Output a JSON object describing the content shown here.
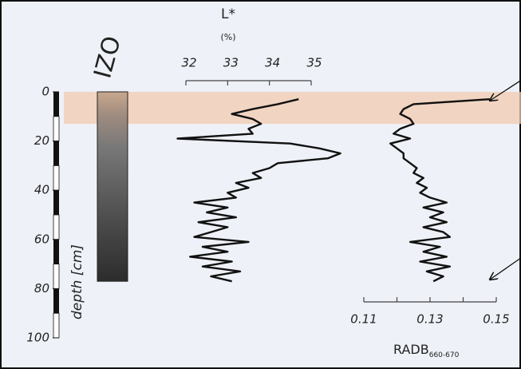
{
  "chart_data": {
    "type": "line",
    "core_label": "IZO",
    "y_label": "depth [cm]",
    "ylim": [
      0,
      100
    ],
    "yticks": [
      0,
      20,
      40,
      60,
      80,
      100
    ],
    "highlight": [
      0,
      13
    ],
    "depth": [
      3,
      5,
      7,
      9,
      11,
      13,
      15,
      17,
      19,
      21,
      23,
      25,
      27,
      29,
      31,
      33,
      35,
      37,
      39,
      41,
      43,
      45,
      47,
      49,
      51,
      53,
      55,
      57,
      59,
      61,
      63,
      65,
      67,
      69,
      71,
      73,
      75,
      77
    ],
    "panels": [
      {
        "x_label": "L*",
        "x_unit": "(%)",
        "xlim": [
          32,
          35
        ],
        "xticks": [
          32,
          33,
          34,
          35
        ],
        "color": "#111111",
        "values": [
          34.7,
          34.2,
          33.6,
          33.1,
          33.6,
          33.8,
          33.5,
          33.6,
          31.8,
          34.5,
          35.2,
          35.7,
          35.4,
          34.2,
          34.0,
          33.6,
          33.8,
          33.2,
          33.5,
          33.0,
          33.2,
          32.2,
          33.0,
          32.5,
          33.2,
          32.3,
          33.0,
          32.6,
          32.2,
          33.5,
          32.4,
          33.0,
          32.1,
          33.1,
          32.4,
          33.3,
          32.6,
          33.1
        ]
      },
      {
        "x_label": "RADB",
        "x_label_sub": "660-670",
        "xlim": [
          0.11,
          0.15
        ],
        "xticks": [
          0.11,
          0.13,
          0.15
        ],
        "minor_xticks": [
          0.12,
          0.14
        ],
        "color": "#111111",
        "values": [
          0.148,
          0.125,
          0.122,
          0.121,
          0.124,
          0.125,
          0.121,
          0.119,
          0.124,
          0.118,
          0.12,
          0.122,
          0.122,
          0.124,
          0.126,
          0.125,
          0.128,
          0.126,
          0.129,
          0.127,
          0.13,
          0.135,
          0.128,
          0.134,
          0.13,
          0.135,
          0.128,
          0.134,
          0.136,
          0.124,
          0.133,
          0.128,
          0.135,
          0.127,
          0.136,
          0.129,
          0.134,
          0.131
        ]
      }
    ]
  }
}
